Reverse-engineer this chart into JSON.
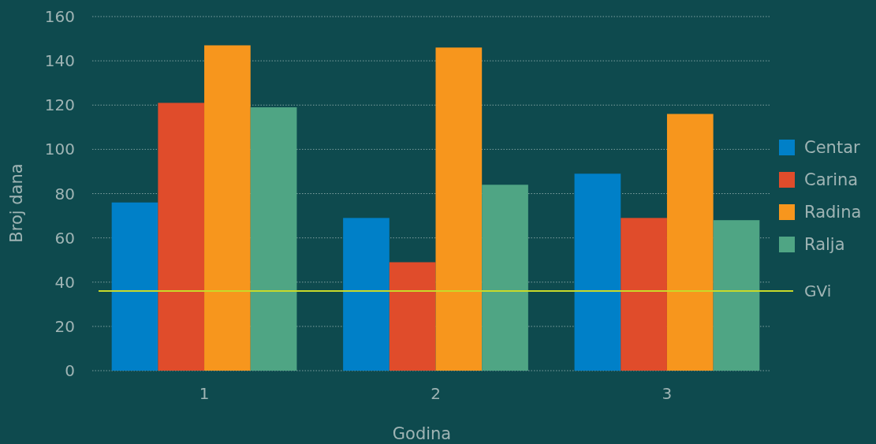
{
  "chart_data": {
    "type": "bar",
    "xlabel": "Godina",
    "ylabel": "Broj dana",
    "categories": [
      "1",
      "2",
      "3"
    ],
    "series": [
      {
        "name": "Centar",
        "color": "#0080c8",
        "values": [
          76,
          69,
          89
        ]
      },
      {
        "name": "Carina",
        "color": "#e04c2b",
        "values": [
          121,
          49,
          69
        ]
      },
      {
        "name": "Radina",
        "color": "#f7961d",
        "values": [
          147,
          146,
          116
        ]
      },
      {
        "name": "Ralja",
        "color": "#4fa584",
        "values": [
          119,
          84,
          68
        ]
      }
    ],
    "ylim": [
      0,
      160
    ],
    "yticks": [
      0,
      20,
      40,
      60,
      80,
      100,
      120,
      140,
      160
    ],
    "grid": "y",
    "legend": "right",
    "ref_lines": [
      {
        "axis": "y",
        "value": 36,
        "label": "GVi",
        "color": "#c8d92a",
        "line_style": "solid"
      }
    ]
  }
}
